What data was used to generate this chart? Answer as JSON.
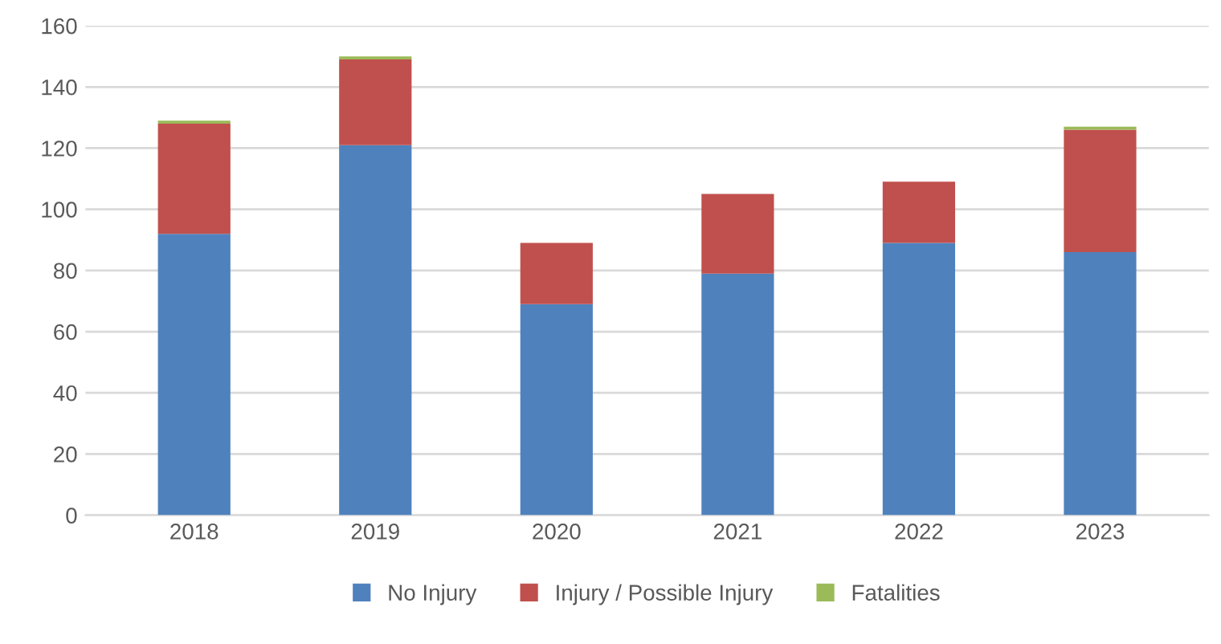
{
  "chart_data": {
    "type": "bar",
    "stacked": true,
    "categories": [
      "2018",
      "2019",
      "2020",
      "2021",
      "2022",
      "2023"
    ],
    "series": [
      {
        "name": "No Injury",
        "color": "#4f81bd",
        "values": [
          92,
          121,
          69,
          79,
          89,
          86
        ]
      },
      {
        "name": "Injury / Possible Injury",
        "color": "#c0504d",
        "values": [
          36,
          28,
          20,
          26,
          20,
          40
        ]
      },
      {
        "name": "Fatalities",
        "color": "#9bbb59",
        "values": [
          1,
          1,
          0,
          0,
          0,
          1
        ]
      }
    ],
    "ylim": [
      0,
      160
    ],
    "yticks": [
      0,
      20,
      40,
      60,
      80,
      100,
      120,
      140,
      160
    ],
    "grid": "y",
    "legend": "bottom"
  }
}
